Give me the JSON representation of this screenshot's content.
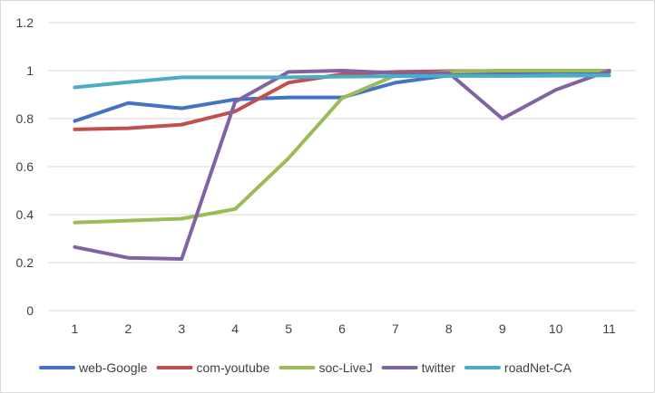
{
  "chart_data": {
    "type": "line",
    "title": "",
    "xlabel": "",
    "ylabel": "",
    "categories": [
      "1",
      "2",
      "3",
      "4",
      "5",
      "6",
      "7",
      "8",
      "9",
      "10",
      "11"
    ],
    "ylim": [
      0,
      1.2
    ],
    "yticks": [
      "0",
      "0.2",
      "0.4",
      "0.6",
      "0.8",
      "1",
      "1.2"
    ],
    "ytick_values": [
      0,
      0.2,
      0.4,
      0.6,
      0.8,
      1.0,
      1.2
    ],
    "grid": true,
    "legend_position": "bottom",
    "series": [
      {
        "name": "web-Google",
        "color": "#4472C4",
        "values": [
          0.79,
          0.865,
          0.843,
          0.88,
          0.888,
          0.888,
          0.95,
          0.98,
          0.99,
          0.995,
          0.995
        ]
      },
      {
        "name": "com-youtube",
        "color": "#C0504D",
        "values": [
          0.755,
          0.76,
          0.775,
          0.83,
          0.95,
          0.985,
          0.995,
          0.998,
          0.999,
          1.0,
          1.0
        ]
      },
      {
        "name": "soc-LiveJ",
        "color": "#9BBB59",
        "values": [
          0.367,
          0.375,
          0.383,
          0.423,
          0.635,
          0.885,
          0.98,
          0.995,
          1.0,
          1.0,
          1.0
        ]
      },
      {
        "name": "twitter",
        "color": "#8064A2",
        "values": [
          0.265,
          0.22,
          0.215,
          0.87,
          0.995,
          1.0,
          0.99,
          0.99,
          0.8,
          0.92,
          1.0
        ]
      },
      {
        "name": "roadNet-CA",
        "color": "#4BACC6",
        "values": [
          0.93,
          0.952,
          0.972,
          0.972,
          0.972,
          0.975,
          0.977,
          0.978,
          0.978,
          0.979,
          0.98
        ]
      }
    ]
  }
}
